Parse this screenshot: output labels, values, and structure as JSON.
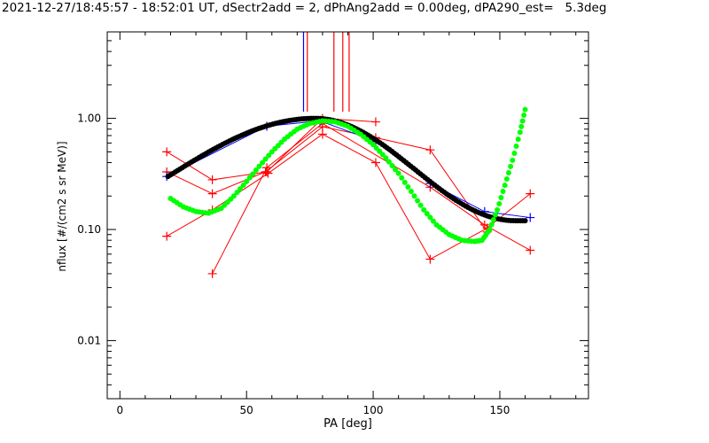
{
  "chart_data": {
    "type": "scatter",
    "title": "2021-12-27/18:45:57 - 18:52:01 UT, dSectr2add = 2, dPhAng2add = 0.00deg, dPA290_est=   5.3deg",
    "xlabel": "PA [deg]",
    "ylabel": "nflux [#/(cm2 s sr MeV)]",
    "xlim": [
      -5,
      185
    ],
    "ylim": [
      0.003,
      6
    ],
    "yscale": "log",
    "grid": false,
    "xticks": [
      0,
      50,
      100,
      150
    ],
    "xtick_labels": [
      "0",
      "50",
      "100",
      "150"
    ],
    "yticks": [
      0.01,
      0.1,
      1.0
    ],
    "ytick_labels": [
      "0.01",
      "0.10",
      "1.00"
    ],
    "colors": {
      "red": "#ff0000",
      "blue": "#0000ff",
      "black": "#000000",
      "green": "#00ff00"
    },
    "vertical_markers": [
      {
        "name": "",
        "color": "#0000ff",
        "x": 72.5,
        "y_top": 6,
        "y_bottom": 1.15
      },
      {
        "name": "",
        "color": "#ff0000",
        "x": 74,
        "y_top": 6,
        "y_bottom": 1.15
      },
      {
        "name": "",
        "color": "#ff0000",
        "x": 84.5,
        "y_top": 6,
        "y_bottom": 1.15
      },
      {
        "name": "",
        "color": "#ff0000",
        "x": 88,
        "y_top": 6,
        "y_bottom": 1.15
      },
      {
        "name": "",
        "color": "#ff0000",
        "x": 90.5,
        "y_top": 6,
        "y_bottom": 1.15
      }
    ],
    "series": [
      {
        "color": "#ff0000",
        "marker": "plus",
        "x": [
          18.5,
          36.5,
          58,
          80,
          101
        ],
        "y": [
          0.5,
          0.28,
          0.33,
          1.0,
          0.93
        ]
      },
      {
        "color": "#ff0000",
        "marker": "plus",
        "x": [
          18.5,
          36.5,
          57.5,
          80,
          101,
          122.5,
          145
        ],
        "y": [
          0.33,
          0.21,
          0.33,
          0.84,
          0.67,
          0.52,
          0.095
        ]
      },
      {
        "color": "#ff0000",
        "marker": "plus",
        "x": [
          18.5,
          36.5,
          58.5,
          80,
          101,
          122.5,
          145,
          162
        ],
        "y": [
          0.087,
          0.15,
          0.32,
          0.72,
          0.4,
          0.054,
          0.103,
          0.21
        ]
      },
      {
        "color": "#ff0000",
        "marker": "plus",
        "x": [
          36.5,
          58,
          80,
          122.5,
          144,
          162
        ],
        "y": [
          0.04,
          0.36,
          0.9,
          0.24,
          0.11,
          0.065
        ]
      },
      {
        "color": "#0000ff",
        "marker": "plus",
        "x": [
          18.5,
          58,
          79,
          101,
          122.5,
          144,
          162
        ],
        "y": [
          0.3,
          0.85,
          0.95,
          0.62,
          0.26,
          0.145,
          0.128
        ]
      },
      {
        "color": "#000000",
        "marker": "dot",
        "fit": "sine",
        "x_range": [
          19,
          160
        ],
        "peak_x": 77,
        "peak_y": 1.0,
        "min_x": 156,
        "min_y": 0.12,
        "start_y": 0.3
      },
      {
        "color": "#00ff00",
        "marker": "dot",
        "fit": "curve",
        "x": [
          20,
          25,
          30,
          35,
          40,
          45,
          50,
          55,
          60,
          65,
          70,
          75,
          80,
          85,
          90,
          95,
          100,
          105,
          110,
          115,
          120,
          125,
          130,
          135,
          140,
          143,
          146,
          149,
          152,
          155,
          158,
          160
        ],
        "y": [
          0.19,
          0.16,
          0.145,
          0.14,
          0.155,
          0.2,
          0.27,
          0.37,
          0.5,
          0.65,
          0.8,
          0.9,
          0.95,
          0.93,
          0.85,
          0.72,
          0.58,
          0.44,
          0.32,
          0.22,
          0.15,
          0.11,
          0.09,
          0.08,
          0.078,
          0.08,
          0.1,
          0.15,
          0.25,
          0.42,
          0.75,
          1.2
        ]
      }
    ]
  }
}
